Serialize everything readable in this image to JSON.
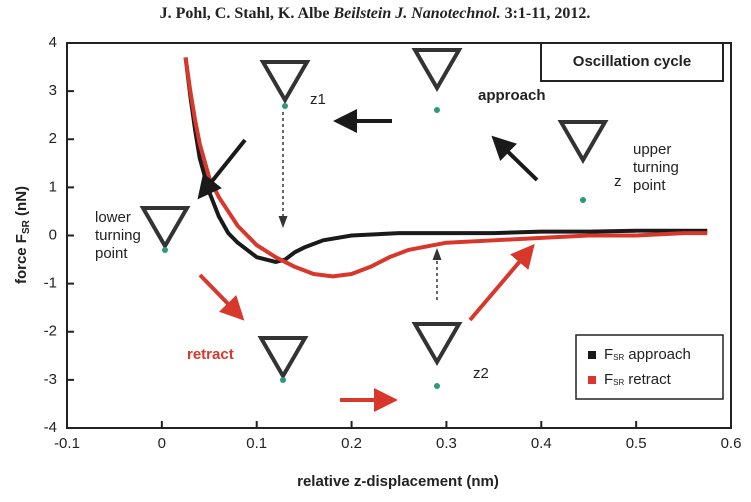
{
  "chart_data": {
    "type": "line",
    "title_authors": "J. Pohl, C. Stahl, K. Albe",
    "title_journal": "Beilstein J. Nanotechnol.",
    "title_ref": "3:1-11, 2012.",
    "box_title": "Oscillation cycle",
    "xlabel": "relative z-displacement (nm)",
    "ylabel": "force F",
    "ylabel_sub": "SR",
    "ylabel_unit": "(nN)",
    "xlim": [
      -0.1,
      0.6
    ],
    "xticks": [
      -0.1,
      0.0,
      0.1,
      0.2,
      0.3,
      0.4,
      0.5,
      0.6
    ],
    "ylim": [
      -4,
      4
    ],
    "yticks": [
      -4,
      -3,
      -2,
      -1,
      0,
      1,
      2,
      3,
      4
    ],
    "series": [
      {
        "name": "approach",
        "symbol": "F",
        "symbol_sub": "SR",
        "color": "#1a1a1a",
        "x": [
          0.025,
          0.03,
          0.035,
          0.04,
          0.05,
          0.06,
          0.07,
          0.08,
          0.09,
          0.1,
          0.11,
          0.12,
          0.13,
          0.14,
          0.15,
          0.17,
          0.2,
          0.25,
          0.3,
          0.35,
          0.4,
          0.45,
          0.5,
          0.55,
          0.575
        ],
        "values": [
          3.7,
          2.9,
          2.2,
          1.6,
          0.9,
          0.4,
          0.05,
          -0.15,
          -0.3,
          -0.45,
          -0.5,
          -0.55,
          -0.5,
          -0.35,
          -0.25,
          -0.1,
          0.0,
          0.05,
          0.05,
          0.05,
          0.08,
          0.08,
          0.1,
          0.1,
          0.1
        ]
      },
      {
        "name": "retract",
        "symbol": "F",
        "symbol_sub": "SR",
        "color": "#d8372b",
        "x": [
          0.025,
          0.03,
          0.035,
          0.04,
          0.05,
          0.06,
          0.07,
          0.08,
          0.09,
          0.1,
          0.12,
          0.14,
          0.16,
          0.18,
          0.2,
          0.22,
          0.24,
          0.26,
          0.3,
          0.35,
          0.4,
          0.45,
          0.5,
          0.55,
          0.575
        ],
        "values": [
          3.7,
          3.0,
          2.4,
          1.9,
          1.2,
          0.8,
          0.5,
          0.2,
          0.0,
          -0.2,
          -0.45,
          -0.65,
          -0.8,
          -0.85,
          -0.8,
          -0.65,
          -0.45,
          -0.3,
          -0.15,
          -0.1,
          -0.05,
          0,
          0,
          0.05,
          0.05
        ]
      }
    ],
    "annotations": {
      "approach": "approach",
      "retract": "retract",
      "upper": [
        "upper",
        "turning",
        "point"
      ],
      "lower": [
        "lower",
        "turning",
        "point"
      ],
      "z1": "z1",
      "z": "z",
      "z2": "z2"
    }
  }
}
